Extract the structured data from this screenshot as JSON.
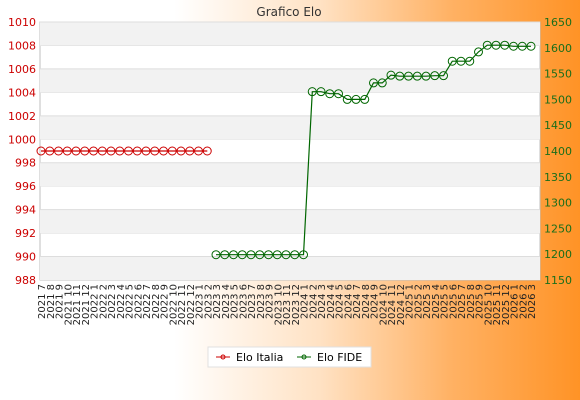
{
  "chart_data": {
    "type": "line",
    "title": "Grafico Elo",
    "xlabel": "",
    "ylabel": "",
    "x": [
      "2021 7",
      "2021 8",
      "2021 9",
      "2021 10",
      "2021 11",
      "2021 12",
      "2022 1",
      "2022 2",
      "2022 3",
      "2022 4",
      "2022 5",
      "2022 6",
      "2022 7",
      "2022 8",
      "2022 9",
      "2022 10",
      "2022 11",
      "2022 12",
      "2023 1",
      "2023 2",
      "2023 3",
      "2023 4",
      "2023 5",
      "2023 6",
      "2023 7",
      "2023 8",
      "2023 9",
      "2023 10",
      "2023 11",
      "2023 12",
      "2024 1",
      "2024 2",
      "2024 3",
      "2024 4",
      "2024 5",
      "2024 6",
      "2024 7",
      "2024 8",
      "2024 9",
      "2024 10",
      "2024 11",
      "2024 12",
      "2025 1",
      "2025 2",
      "2025 3",
      "2025 4",
      "2025 5",
      "2025 6",
      "2025 7",
      "2025 8",
      "2025 9",
      "2025 10",
      "2025 11",
      "2025 12",
      "2026 1",
      "2026 2",
      "2026 3"
    ],
    "y_left_range": [
      988,
      1010
    ],
    "y_left_ticks": [
      "988",
      "990",
      "992",
      "994",
      "996",
      "998",
      "1000",
      "1002",
      "1004",
      "1006",
      "1008",
      "1010"
    ],
    "y_right_range": [
      1150,
      1650
    ],
    "y_right_ticks": [
      "1150",
      "1200",
      "1250",
      "1300",
      "1350",
      "1400",
      "1450",
      "1500",
      "1550",
      "1600",
      "1650"
    ],
    "grid": "horizontal bands",
    "legend_position": "bottom-center",
    "series": [
      {
        "name": "Elo Italia",
        "axis": "left",
        "color": "#cc0000",
        "values": [
          999,
          999,
          999,
          999,
          999,
          999,
          999,
          999,
          999,
          999,
          999,
          999,
          999,
          999,
          999,
          999,
          999,
          999,
          999,
          999,
          null,
          null,
          null,
          null,
          null,
          null,
          null,
          null,
          null,
          null,
          null,
          null,
          null,
          null,
          null,
          null,
          null,
          null,
          null,
          null,
          null,
          null,
          null,
          null,
          null,
          null,
          null,
          null,
          null,
          null,
          null,
          null,
          null,
          null,
          null,
          null,
          null
        ]
      },
      {
        "name": "Elo FIDE",
        "axis": "right",
        "color": "#006600",
        "values": [
          null,
          null,
          null,
          null,
          null,
          null,
          null,
          null,
          null,
          null,
          null,
          null,
          null,
          null,
          null,
          null,
          null,
          null,
          null,
          null,
          1199,
          1199,
          1199,
          1199,
          1199,
          1199,
          1199,
          1199,
          1199,
          1199,
          1199,
          1515,
          1515,
          1511,
          1511,
          1500,
          1500,
          1500,
          1532,
          1532,
          1547,
          1545,
          1545,
          1545,
          1545,
          1546,
          1546,
          1574,
          1574,
          1574,
          1592,
          1605,
          1605,
          1605,
          1603,
          1603,
          1603
        ]
      }
    ]
  }
}
